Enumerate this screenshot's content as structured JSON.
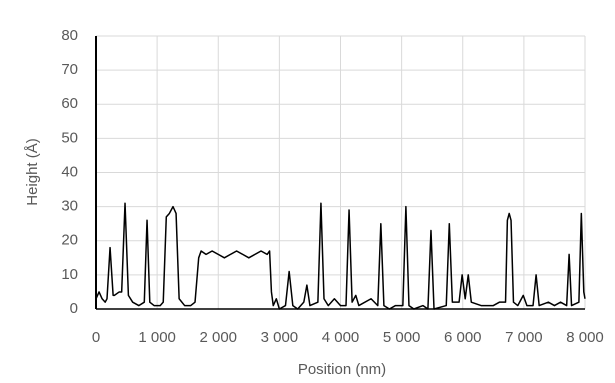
{
  "chart_data": {
    "type": "line",
    "x_label": "Position (nm)",
    "y_label": "Height (Å)",
    "x": [
      0,
      50,
      100,
      150,
      180,
      230,
      280,
      300,
      380,
      420,
      475,
      530,
      600,
      700,
      790,
      835,
      880,
      950,
      1050,
      1100,
      1150,
      1200,
      1260,
      1310,
      1360,
      1450,
      1550,
      1620,
      1680,
      1720,
      1800,
      1900,
      2000,
      2100,
      2200,
      2300,
      2400,
      2500,
      2600,
      2700,
      2800,
      2840,
      2870,
      2900,
      2950,
      3000,
      3100,
      3160,
      3220,
      3300,
      3400,
      3450,
      3500,
      3630,
      3680,
      3730,
      3800,
      3900,
      4000,
      4090,
      4140,
      4190,
      4250,
      4300,
      4500,
      4610,
      4660,
      4710,
      4800,
      4900,
      5020,
      5070,
      5120,
      5200,
      5350,
      5430,
      5480,
      5530,
      5730,
      5780,
      5830,
      5940,
      5990,
      6040,
      6090,
      6140,
      6300,
      6500,
      6600,
      6700,
      6730,
      6760,
      6790,
      6830,
      6900,
      6990,
      7050,
      7150,
      7200,
      7250,
      7400,
      7500,
      7600,
      7700,
      7740,
      7780,
      7900,
      7940,
      7980,
      8000
    ],
    "series": [
      {
        "color": "#000000",
        "values": [
          3,
          5,
          3,
          2,
          3,
          18,
          4,
          4,
          5,
          5,
          31,
          4,
          2,
          1,
          2,
          26,
          2,
          1,
          1,
          2,
          27,
          28,
          30,
          28,
          3,
          1,
          1,
          2,
          15,
          17,
          16,
          17,
          16,
          15,
          16,
          17,
          16,
          15,
          16,
          17,
          16,
          17,
          5,
          1,
          3,
          0,
          1,
          11,
          1,
          0,
          2,
          7,
          1,
          2,
          31,
          3,
          1,
          3,
          1,
          1,
          29,
          2,
          4,
          1,
          3,
          1,
          25,
          1,
          0,
          1,
          1,
          30,
          1,
          0,
          1,
          0,
          23,
          0,
          1,
          25,
          2,
          2,
          10,
          3,
          10,
          2,
          1,
          1,
          2,
          2,
          26,
          28,
          26,
          2,
          1,
          4,
          1,
          1,
          10,
          1,
          2,
          1,
          2,
          1,
          16,
          1,
          2,
          28,
          5,
          3
        ]
      }
    ],
    "xlim": [
      0,
      8000
    ],
    "ylim": [
      0,
      80
    ],
    "xticks": [
      0,
      {
        "value": 1000,
        "label": "1 000"
      },
      {
        "value": 2000,
        "label": "2 000"
      },
      {
        "value": 3000,
        "label": "3 000"
      },
      {
        "value": 4000,
        "label": "4 000"
      },
      {
        "value": 5000,
        "label": "5 000"
      },
      {
        "value": 6000,
        "label": "6 000"
      },
      {
        "value": 7000,
        "label": "7 000"
      },
      {
        "value": 8000,
        "label": "8 000"
      }
    ],
    "yticks": [
      0,
      10,
      20,
      30,
      40,
      50,
      60,
      70,
      80
    ],
    "grid": true
  }
}
